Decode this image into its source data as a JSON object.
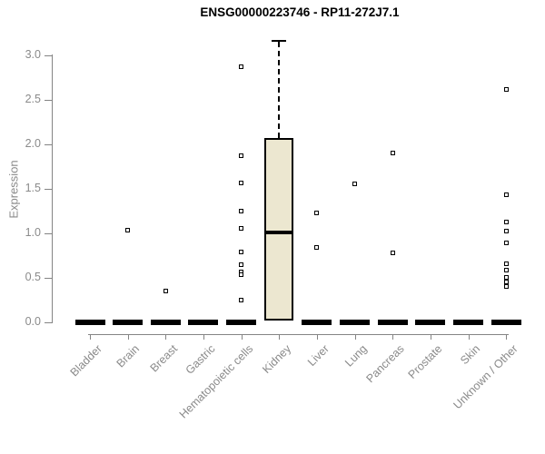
{
  "chart_data": {
    "type": "boxplot",
    "title": "ENSG00000223746 - RP11-272J7.1",
    "ylabel": "Expression",
    "xlabel": "",
    "ylim": [
      0.0,
      3.0
    ],
    "yticks": [
      0.0,
      0.5,
      1.0,
      1.5,
      2.0,
      2.5,
      3.0
    ],
    "ytick_labels": [
      "0.0",
      "0.5",
      "1.0",
      "1.5",
      "2.0",
      "2.5",
      "3.0"
    ],
    "grid": false,
    "legend": "none",
    "categories": [
      "Bladder",
      "Brain",
      "Breast",
      "Gastric",
      "Hematopoietic cells",
      "Kidney",
      "Liver",
      "Lung",
      "Pancreas",
      "Prostate",
      "Skin",
      "Unknown / Other"
    ],
    "boxes": [
      {
        "category": "Bladder",
        "collapsed": true,
        "value": 0.0,
        "outliers": []
      },
      {
        "category": "Brain",
        "collapsed": true,
        "value": 0.0,
        "outliers": [
          1.04
        ]
      },
      {
        "category": "Breast",
        "collapsed": true,
        "value": 0.0,
        "outliers": [
          0.35
        ]
      },
      {
        "category": "Gastric",
        "collapsed": true,
        "value": 0.0,
        "outliers": []
      },
      {
        "category": "Hematopoietic cells",
        "collapsed": true,
        "value": 0.0,
        "outliers": [
          2.87,
          1.87,
          1.57,
          1.25,
          1.06,
          0.79,
          0.65,
          0.57,
          0.54,
          0.25
        ]
      },
      {
        "category": "Kidney",
        "collapsed": false,
        "whisker_low": 0.0,
        "q1": 0.02,
        "median": 1.01,
        "q3": 2.07,
        "whisker_high": 3.17,
        "outliers": []
      },
      {
        "category": "Liver",
        "collapsed": true,
        "value": 0.0,
        "outliers": [
          1.23,
          0.84
        ]
      },
      {
        "category": "Lung",
        "collapsed": true,
        "value": 0.0,
        "outliers": [
          1.56
        ]
      },
      {
        "category": "Pancreas",
        "collapsed": true,
        "value": 0.0,
        "outliers": [
          1.9,
          0.78
        ]
      },
      {
        "category": "Prostate",
        "collapsed": true,
        "value": 0.0,
        "outliers": []
      },
      {
        "category": "Skin",
        "collapsed": true,
        "value": 0.0,
        "outliers": []
      },
      {
        "category": "Unknown / Other",
        "collapsed": true,
        "value": 0.0,
        "outliers": [
          2.62,
          1.43,
          1.13,
          1.03,
          0.89,
          0.66,
          0.59,
          0.51,
          0.45,
          0.4
        ]
      }
    ],
    "colors": {
      "box_fill": "#ece7d0",
      "box_border": "#000000",
      "median": "#000000",
      "outlier": "#000000",
      "axis": "#848484",
      "tick_text": "#8a8a8a",
      "title_text": "#000000",
      "background": "#ffffff"
    }
  }
}
